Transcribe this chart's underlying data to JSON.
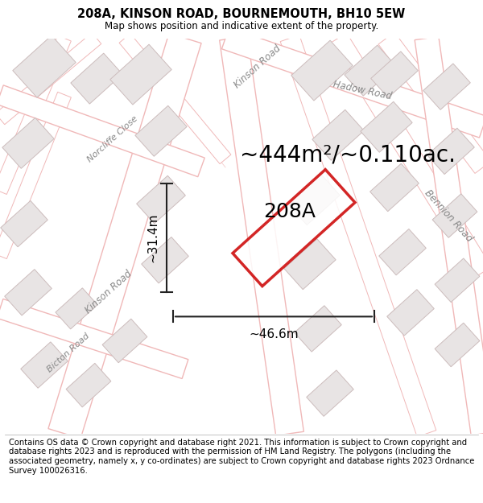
{
  "title": "208A, KINSON ROAD, BOURNEMOUTH, BH10 5EW",
  "subtitle": "Map shows position and indicative extent of the property.",
  "footer": "Contains OS data © Crown copyright and database right 2021. This information is subject to Crown copyright and database rights 2023 and is reproduced with the permission of HM Land Registry. The polygons (including the associated geometry, namely x, y co-ordinates) are subject to Crown copyright and database rights 2023 Ordnance Survey 100026316.",
  "area_label": "~444m²/~0.110ac.",
  "property_label": "208A",
  "width_label": "~46.6m",
  "height_label": "~31.4m",
  "map_bg": "#ffffff",
  "road_line_color": "#f0b8b8",
  "road_fill_color": "#ffffff",
  "block_fill": "#e8e4e4",
  "block_edge": "#ccbcbc",
  "property_edge": "#cc0000",
  "dim_color": "#222222",
  "road_label_color": "#888888",
  "title_fontsize": 10.5,
  "subtitle_fontsize": 8.5,
  "footer_fontsize": 7.2,
  "area_fontsize": 20,
  "property_label_fontsize": 18,
  "dim_fontsize": 11,
  "road_label_fontsize": 8.5
}
